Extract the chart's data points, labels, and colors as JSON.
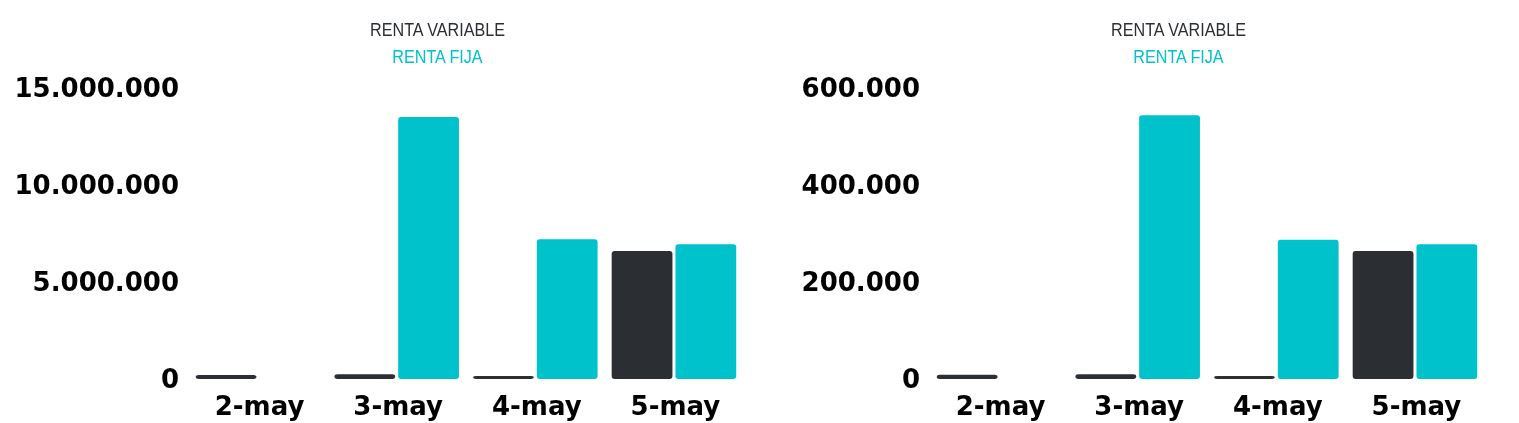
{
  "chart_data": [
    {
      "type": "bar",
      "categories": [
        "2-may",
        "3-may",
        "4-may",
        "5-may"
      ],
      "series": [
        {
          "name": "RENTA VARIABLE",
          "color": "#2b2f33",
          "values": [
            200000,
            250000,
            150000,
            6600000
          ]
        },
        {
          "name": "RENTA FIJA",
          "color": "#00c2cb",
          "values": [
            0,
            13500000,
            7200000,
            6950000
          ]
        }
      ],
      "ylim": [
        0,
        15000000
      ],
      "yticks": [
        {
          "value": 0,
          "label": "0"
        },
        {
          "value": 5000000,
          "label": "5.000.000"
        },
        {
          "value": 10000000,
          "label": "10.000.000"
        },
        {
          "value": 15000000,
          "label": "15.000.000"
        }
      ],
      "legend": "top",
      "grid": false
    },
    {
      "type": "bar",
      "categories": [
        "2-may",
        "3-may",
        "4-may",
        "5-may"
      ],
      "series": [
        {
          "name": "RENTA VARIABLE",
          "color": "#2b2f33",
          "values": [
            9000,
            10000,
            6000,
            264000
          ]
        },
        {
          "name": "RENTA FIJA",
          "color": "#00c2cb",
          "values": [
            0,
            544000,
            287000,
            278000
          ]
        }
      ],
      "ylim": [
        0,
        600000
      ],
      "yticks": [
        {
          "value": 0,
          "label": "0"
        },
        {
          "value": 200000,
          "label": "200.000"
        },
        {
          "value": 400000,
          "label": "400.000"
        },
        {
          "value": 600000,
          "label": "600.000"
        }
      ],
      "legend": "top",
      "grid": false
    }
  ]
}
